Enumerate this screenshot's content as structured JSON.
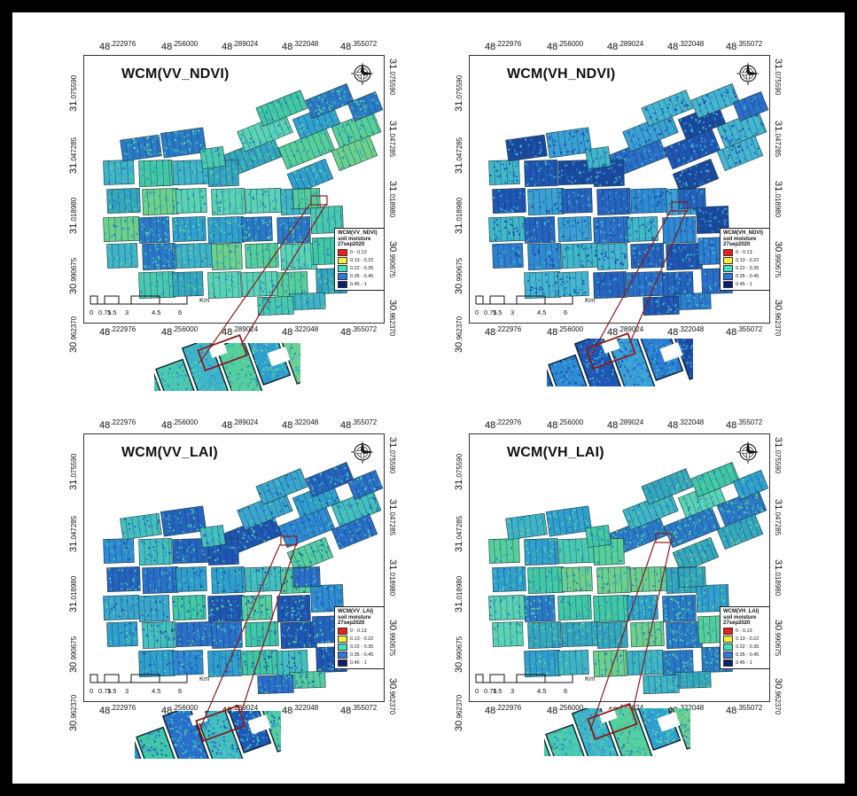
{
  "panels": [
    {
      "id": "vv-ndvi",
      "title": "WCM(VV_NDVI)",
      "legend_title": "WCM(VV_NDVI)\nsoil moisture\n27sep2020",
      "tone": "green"
    },
    {
      "id": "vh-ndvi",
      "title": "WCM(VH_NDVI)",
      "legend_title": "WCM(VH_NDVI)\nsoil moisture\n27sep2020",
      "tone": "blue"
    },
    {
      "id": "vv-lai",
      "title": "WCM(VV_LAI)",
      "legend_title": "WCM(VV_LAI)\nsoil moisture\n27sep2020",
      "tone": "mixed"
    },
    {
      "id": "vh-lai",
      "title": "WCM(VH_LAI)",
      "legend_title": "WCM(VH_LAI)\nsoil moisture\n27sep2020",
      "tone": "green"
    }
  ],
  "legend_classes": [
    {
      "label": "0 - 0.13",
      "color": "#e8201c"
    },
    {
      "label": "0.13 - 0.22",
      "color": "#f2ee3a"
    },
    {
      "label": "0.22 - 0.35",
      "color": "#3fe0c0"
    },
    {
      "label": "0.35 - 0.45",
      "color": "#2f78d8"
    },
    {
      "label": "0.45 - 1",
      "color": "#0d1f6e"
    }
  ],
  "lon_ticks": [
    {
      "int": "48",
      "frac": ".222976"
    },
    {
      "int": "48",
      "frac": ".256000"
    },
    {
      "int": "48",
      "frac": ".289024"
    },
    {
      "int": "48",
      "frac": ".322048"
    },
    {
      "int": "48",
      "frac": ".355072"
    }
  ],
  "lat_ticks": [
    {
      "int": "31",
      "frac": ".075590"
    },
    {
      "int": "31",
      "frac": ".047285"
    },
    {
      "int": "31",
      "frac": ".018980"
    },
    {
      "int": "30",
      "frac": ".990675"
    },
    {
      "int": "30",
      "frac": ".962370"
    }
  ],
  "scale": {
    "ticks": [
      "0",
      "0.75",
      "1.5",
      "3",
      "4.5",
      "6"
    ],
    "unit": "Km"
  },
  "compass_icon": "north-arrow-compass-icon",
  "leader_color": "#8b1a1a"
}
